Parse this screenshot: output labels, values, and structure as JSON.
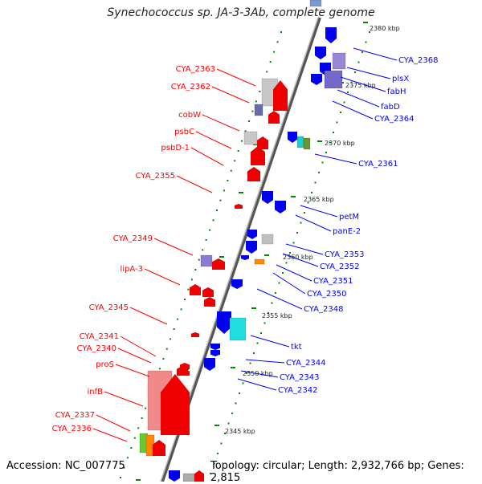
{
  "title": "Synechococcus sp. JA-3-3Ab, complete genome",
  "footer": {
    "accession": "Accession: NC_007775",
    "info": "Topology: circular; Length: 2,932,766 bp; Genes: 2,815"
  },
  "colors": {
    "forward": "#ff0000",
    "reverse": "#0000ff",
    "backbone": "#808080",
    "scale": "#008800"
  },
  "scale_labels": [
    "2380 kbp",
    "2375 kbp",
    "2370 kbp",
    "2365 kbp",
    "2360 kbp",
    "2355 kbp",
    "2350 kbp",
    "2345 kbp"
  ],
  "forward_labels": [
    "CYA_2363",
    "CYA_2362",
    "cobW",
    "psbC",
    "psbD-1",
    "CYA_2355",
    "CYA_2349",
    "lipA-3",
    "CYA_2345",
    "CYA_2341",
    "CYA_2340",
    "proS",
    "infB",
    "CYA_2337",
    "CYA_2336"
  ],
  "reverse_labels": [
    "CYA_2368",
    "plsX",
    "fabH",
    "fabD",
    "CYA_2364",
    "CYA_2361",
    "petM",
    "panE-2",
    "CYA_2353",
    "CYA_2352",
    "CYA_2351",
    "CYA_2350",
    "CYA_2348",
    "tkt",
    "CYA_2344",
    "CYA_2343",
    "CYA_2342"
  ]
}
